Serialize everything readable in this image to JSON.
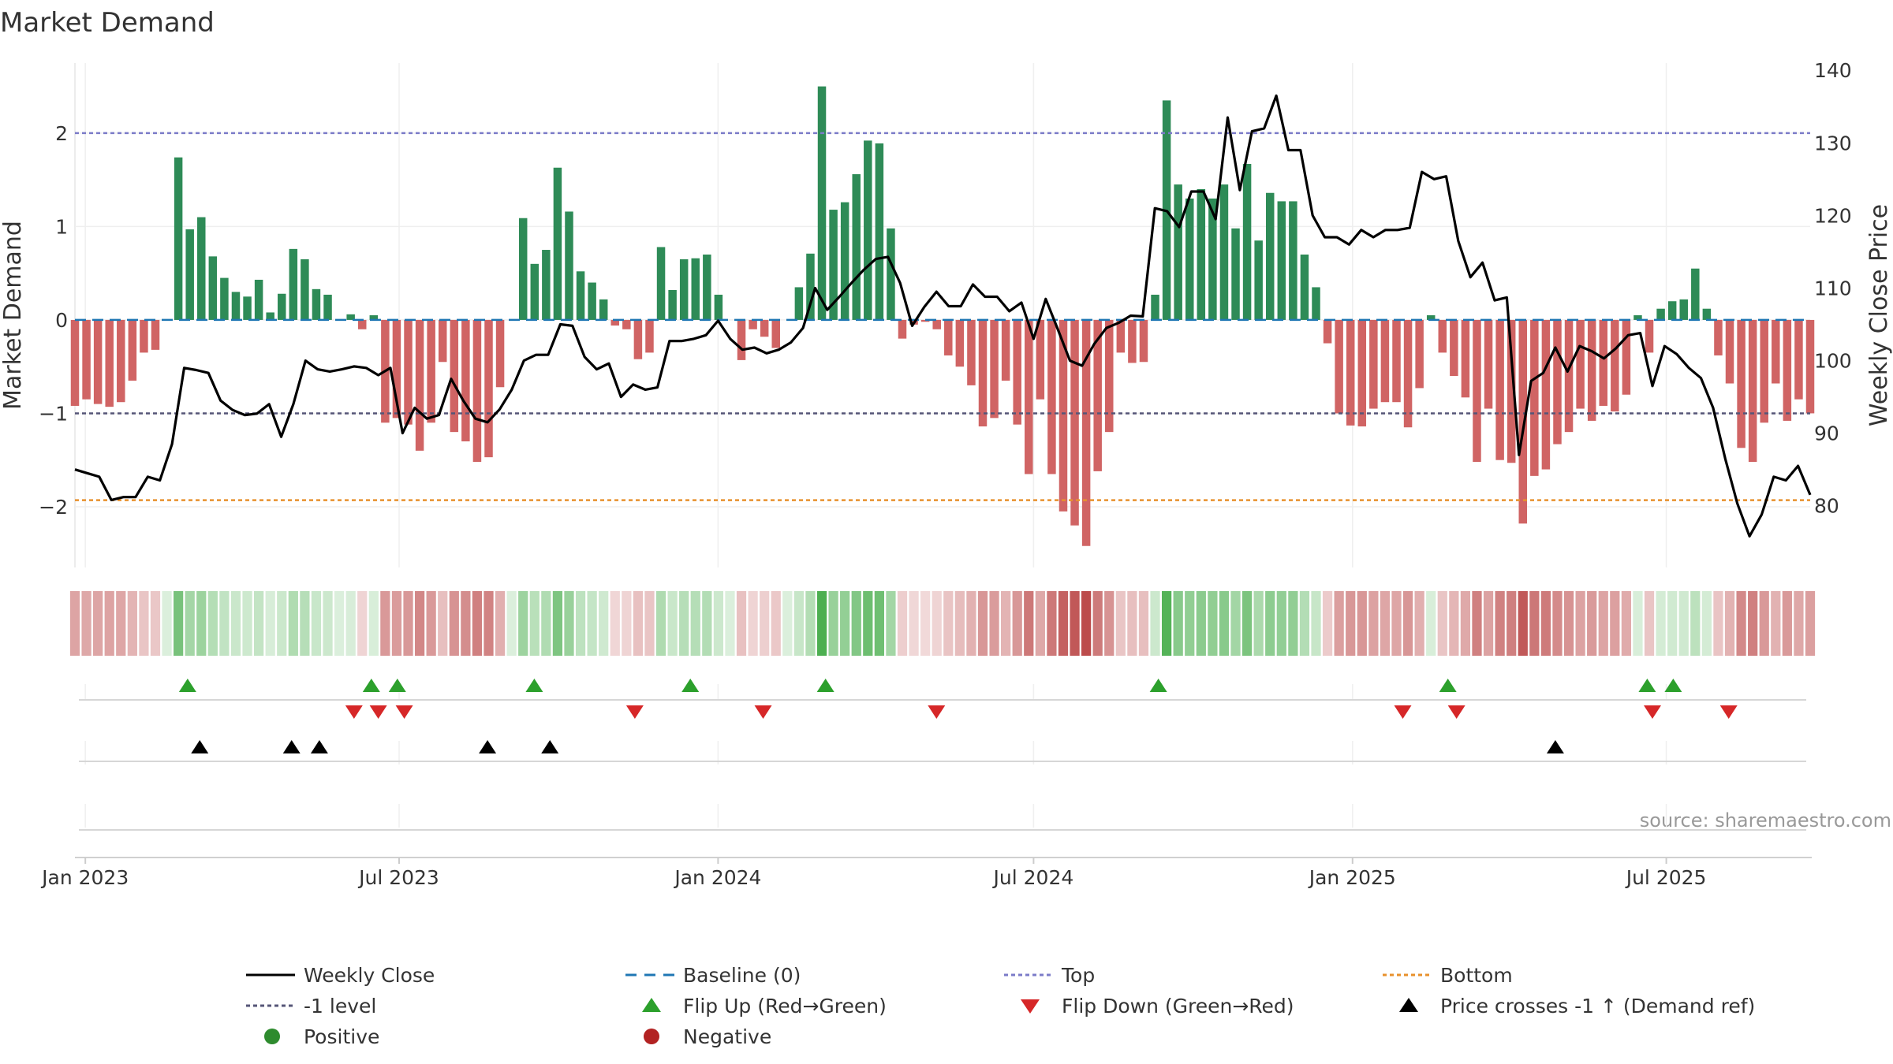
{
  "chart_data": {
    "type": "bar",
    "title": "Market Demand",
    "ylabel": "Market Demand",
    "ylabel_right": "Weekly Close Price",
    "ylim": [
      -2.65,
      2.75
    ],
    "ylim_right": [
      71.5,
      141
    ],
    "yticks": [
      -2,
      -1,
      0,
      1,
      2
    ],
    "yticks_right": [
      80,
      90,
      100,
      110,
      120,
      130,
      140
    ],
    "x_start": "2022-12-26",
    "x_end": "2025-09-22",
    "x_ticks": [
      {
        "label": "Jan 2023",
        "date": "2023-01-01"
      },
      {
        "label": "Jul 2023",
        "date": "2023-07-01"
      },
      {
        "label": "Jan 2024",
        "date": "2024-01-01"
      },
      {
        "label": "Jul 2024",
        "date": "2024-07-01"
      },
      {
        "label": "Jan 2025",
        "date": "2025-01-01"
      },
      {
        "label": "Jul 2025",
        "date": "2025-07-01"
      }
    ],
    "levels": {
      "top": 2.0,
      "minus_one": -1.0,
      "bottom": -1.93,
      "baseline": 0
    },
    "colors": {
      "positive": "#2e8b57",
      "negative": "#cd5c5c",
      "close": "#000000",
      "top": "#7b7bc8",
      "bottom": "#e8912d",
      "minus_one": "#555577",
      "baseline": "#1f77b4",
      "flip_up": "#2ca02c",
      "flip_down": "#d62728"
    },
    "demand": [
      -0.92,
      -0.85,
      -0.9,
      -0.93,
      -0.88,
      -0.65,
      -0.35,
      -0.32,
      0,
      1.74,
      0.97,
      1.1,
      0.68,
      0.45,
      0.3,
      0.25,
      0.43,
      0.08,
      0.28,
      0.76,
      0.65,
      0.33,
      0.27,
      0,
      0.06,
      -0.1,
      0.05,
      -1.1,
      -1.05,
      -1.12,
      -1.4,
      -1.1,
      -0.45,
      -1.2,
      -1.3,
      -1.52,
      -1.47,
      -0.72,
      0,
      1.09,
      0.6,
      0.75,
      1.63,
      1.16,
      0.52,
      0.4,
      0.22,
      -0.06,
      -0.1,
      -0.42,
      -0.35,
      0.78,
      0.32,
      0.65,
      0.66,
      0.7,
      0.27,
      0,
      -0.43,
      -0.1,
      -0.18,
      -0.3,
      0,
      0.35,
      0.71,
      2.5,
      1.18,
      1.26,
      1.56,
      1.92,
      1.89,
      0.98,
      -0.2,
      -0.05,
      -0.02,
      -0.1,
      -0.38,
      -0.5,
      -0.7,
      -1.14,
      -1.05,
      -0.65,
      -1.12,
      -1.65,
      -0.85,
      -1.65,
      -2.05,
      -2.2,
      -2.42,
      -1.62,
      -1.2,
      -0.35,
      -0.46,
      -0.45,
      0.27,
      2.35,
      1.45,
      1.3,
      1.4,
      1.3,
      1.45,
      0.98,
      1.67,
      0.85,
      1.36,
      1.27,
      1.27,
      0.7,
      0.35,
      -0.25,
      -1.0,
      -1.13,
      -1.14,
      -0.95,
      -0.88,
      -0.88,
      -1.15,
      -0.73,
      0.05,
      -0.35,
      -0.6,
      -0.83,
      -1.52,
      -0.95,
      -1.5,
      -1.53,
      -2.18,
      -1.67,
      -1.6,
      -1.33,
      -1.2,
      -0.95,
      -1.08,
      -0.92,
      -0.98,
      -0.8,
      0.05,
      -0.35,
      0.12,
      0.2,
      0.22,
      0.55,
      0.12,
      -0.38,
      -0.68,
      -1.37,
      -1.52,
      -1.1,
      -0.68,
      -1.08,
      -0.85,
      -1.0
    ],
    "close": [
      85,
      84.5,
      84,
      80.8,
      81.2,
      81.2,
      84,
      83.5,
      88.5,
      99,
      98.7,
      98.3,
      94.5,
      93.2,
      92.5,
      92.7,
      94,
      89.5,
      94,
      100,
      98.8,
      98.5,
      98.8,
      99.2,
      99,
      98,
      99,
      90,
      93.5,
      92,
      92.5,
      97.5,
      94.5,
      92,
      91.5,
      93.3,
      96,
      100,
      100.8,
      100.8,
      105,
      104.8,
      100.5,
      98.8,
      99.6,
      95,
      96.7,
      96,
      96.3,
      102.7,
      102.7,
      103,
      103.5,
      105.5,
      103,
      101.5,
      101.8,
      101,
      101.5,
      102.5,
      104.5,
      110,
      107,
      108.8,
      110.7,
      112.5,
      114,
      114.3,
      110.7,
      104.8,
      107.4,
      109.5,
      107.5,
      107.5,
      110.5,
      108.8,
      108.8,
      106.8,
      108,
      103,
      108.5,
      104.3,
      100,
      99.3,
      102.3,
      104.5,
      105.2,
      106.2,
      106.1,
      121,
      120.6,
      118.4,
      123.3,
      123.3,
      119.5,
      133.5,
      123.5,
      131.6,
      132,
      136.5,
      129,
      129,
      120,
      117,
      117,
      116,
      118,
      117,
      118,
      118,
      118.3,
      126,
      125,
      125.4,
      116.5,
      111.5,
      113.5,
      108.3,
      108.7,
      87,
      97.2,
      98.3,
      101.8,
      98.5,
      102,
      101.3,
      100.3,
      101.7,
      103.5,
      103.8,
      96.5,
      102,
      100.9,
      99,
      97.6,
      93.5,
      86.5,
      80.3,
      75.8,
      78.8,
      84,
      83.5,
      85.5,
      81.5
    ],
    "heat_strip": {
      "positive_label": "Positive",
      "negative_label": "Negative"
    },
    "events": {
      "flip_up_dates": [
        "2023-03-01",
        "2023-06-15",
        "2023-06-30",
        "2023-09-17",
        "2023-12-16",
        "2024-03-03",
        "2024-09-11",
        "2025-02-25",
        "2025-06-20",
        "2025-07-05"
      ],
      "flip_down_dates": [
        "2023-06-05",
        "2023-06-19",
        "2023-07-04",
        "2023-11-14",
        "2024-01-27",
        "2024-05-06",
        "2025-01-30",
        "2025-03-02",
        "2025-06-23",
        "2025-08-06"
      ],
      "price_cross_dates": [
        "2023-03-08",
        "2023-04-30",
        "2023-05-16",
        "2023-08-21",
        "2023-09-26",
        "2025-04-28"
      ]
    },
    "legend": [
      {
        "label": "Weekly Close",
        "kind": "line-solid"
      },
      {
        "label": "Baseline (0)",
        "kind": "line-dash-blue"
      },
      {
        "label": "Top",
        "kind": "line-dot-purple"
      },
      {
        "label": "Bottom",
        "kind": "line-dot-orange"
      },
      {
        "label": "-1 level",
        "kind": "line-dot-gray"
      },
      {
        "label": "Flip Up (Red→Green)",
        "kind": "tri-up-green"
      },
      {
        "label": "Flip Down (Green→Red)",
        "kind": "tri-down-red"
      },
      {
        "label": "Price crosses -1 ↑ (Demand ref)",
        "kind": "tri-up-black"
      },
      {
        "label": "Positive",
        "kind": "dot-green"
      },
      {
        "label": "Negative",
        "kind": "dot-red"
      }
    ],
    "source": "source: sharemaestro.com"
  }
}
